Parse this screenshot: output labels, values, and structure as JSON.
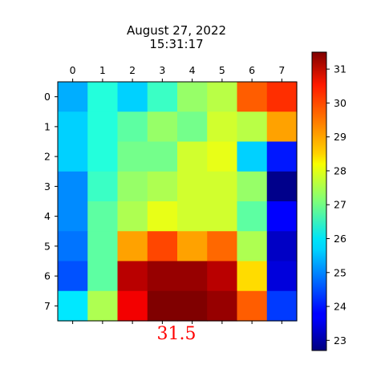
{
  "chart_data": {
    "type": "heatmap",
    "title": "August 27, 2022",
    "subtitle": "15:31:17",
    "annotation": "31.5",
    "colormap": "jet",
    "x_ticks": [
      "0",
      "1",
      "2",
      "3",
      "4",
      "5",
      "6",
      "7"
    ],
    "y_ticks": [
      "0",
      "1",
      "2",
      "3",
      "4",
      "5",
      "6",
      "7"
    ],
    "colorbar_ticks": [
      "23",
      "24",
      "25",
      "26",
      "27",
      "28",
      "29",
      "30",
      "31"
    ],
    "value_range": [
      22.7,
      31.5
    ],
    "values": [
      [
        25.3,
        26.3,
        25.6,
        26.5,
        27.3,
        27.6,
        29.6,
        30.0
      ],
      [
        25.6,
        26.3,
        26.8,
        27.3,
        27.0,
        27.8,
        27.6,
        29.0
      ],
      [
        25.6,
        26.3,
        27.0,
        27.0,
        27.8,
        28.0,
        25.6,
        24.0
      ],
      [
        25.0,
        26.5,
        27.3,
        27.5,
        27.8,
        27.8,
        27.3,
        22.8
      ],
      [
        25.0,
        26.8,
        27.5,
        28.0,
        27.8,
        27.8,
        26.8,
        23.8
      ],
      [
        24.8,
        26.8,
        29.0,
        29.8,
        29.0,
        29.5,
        27.5,
        23.3
      ],
      [
        24.5,
        26.8,
        31.0,
        31.3,
        31.3,
        31.0,
        28.5,
        23.5
      ],
      [
        25.8,
        27.5,
        30.5,
        31.5,
        31.5,
        31.3,
        29.6,
        24.3
      ]
    ]
  }
}
